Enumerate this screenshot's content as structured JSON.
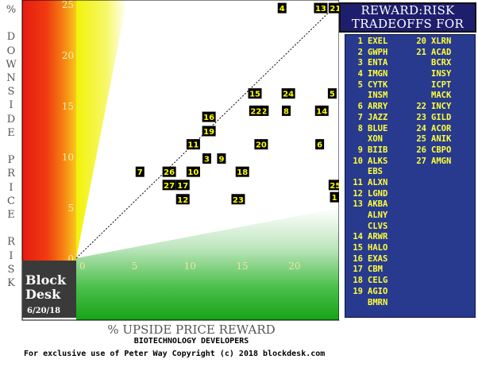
{
  "chart_data": {
    "type": "scatter",
    "xlabel": "% UPSIDE PRICE REWARD",
    "ylabel": "% DOWNSIDE PRICE RISK",
    "xlim": [
      0,
      25
    ],
    "ylim": [
      0,
      25
    ],
    "x_ticks": [
      "0",
      "5",
      "10",
      "15",
      "20",
      "25"
    ],
    "y_ticks": [
      "0",
      "5",
      "10",
      "15",
      "20",
      "25"
    ],
    "grid": false,
    "points": [
      {
        "label": "1",
        "x": 24.7,
        "y": 6.0
      },
      {
        "label": "2",
        "x": 18.0,
        "y": 14.5
      },
      {
        "label": "3",
        "x": 12.5,
        "y": 9.8
      },
      {
        "label": "4",
        "x": 19.7,
        "y": 24.6
      },
      {
        "label": "5",
        "x": 24.5,
        "y": 16.2
      },
      {
        "label": "6",
        "x": 23.3,
        "y": 11.2
      },
      {
        "label": "7",
        "x": 6.1,
        "y": 8.5
      },
      {
        "label": "8",
        "x": 20.1,
        "y": 14.5
      },
      {
        "label": "9",
        "x": 13.9,
        "y": 9.8
      },
      {
        "label": "10",
        "x": 11.2,
        "y": 8.5
      },
      {
        "label": "11",
        "x": 11.2,
        "y": 11.2
      },
      {
        "label": "12",
        "x": 10.2,
        "y": 5.8
      },
      {
        "label": "13",
        "x": 23.4,
        "y": 24.6
      },
      {
        "label": "14",
        "x": 23.5,
        "y": 14.5
      },
      {
        "label": "15",
        "x": 17.1,
        "y": 16.2
      },
      {
        "label": "16",
        "x": 12.7,
        "y": 13.9
      },
      {
        "label": "17",
        "x": 10.2,
        "y": 7.2
      },
      {
        "label": "18",
        "x": 15.9,
        "y": 8.5
      },
      {
        "label": "19",
        "x": 12.7,
        "y": 12.5
      },
      {
        "label": "20",
        "x": 17.7,
        "y": 11.2
      },
      {
        "label": "21",
        "x": 24.8,
        "y": 24.6
      },
      {
        "label": "22",
        "x": 17.2,
        "y": 14.5
      },
      {
        "label": "23",
        "x": 15.5,
        "y": 5.8
      },
      {
        "label": "24",
        "x": 20.3,
        "y": 16.2
      },
      {
        "label": "25",
        "x": 24.8,
        "y": 7.2
      },
      {
        "label": "26",
        "x": 8.9,
        "y": 8.5
      },
      {
        "label": "27",
        "x": 8.9,
        "y": 7.2
      }
    ]
  },
  "legend": {
    "title_line1": "REWARD:RISK",
    "title_line2": "TRADEOFFS FOR",
    "left_column": [
      {
        "num": "1",
        "ticker": "EXEL"
      },
      {
        "num": "2",
        "ticker": "GWPH"
      },
      {
        "num": "3",
        "ticker": "ENTA"
      },
      {
        "num": "4",
        "ticker": "IMGN"
      },
      {
        "num": "5",
        "ticker": "CYTK"
      },
      {
        "num": "",
        "ticker": "INSM"
      },
      {
        "num": "6",
        "ticker": "ARRY"
      },
      {
        "num": "7",
        "ticker": "JAZZ"
      },
      {
        "num": "8",
        "ticker": "BLUE"
      },
      {
        "num": "",
        "ticker": "XON"
      },
      {
        "num": "9",
        "ticker": "BIIB"
      },
      {
        "num": "10",
        "ticker": "ALKS"
      },
      {
        "num": "",
        "ticker": "EBS"
      },
      {
        "num": "11",
        "ticker": "ALXN"
      },
      {
        "num": "12",
        "ticker": "LGND"
      },
      {
        "num": "13",
        "ticker": "AKBA"
      },
      {
        "num": "",
        "ticker": "ALNY"
      },
      {
        "num": "",
        "ticker": "CLVS"
      },
      {
        "num": "14",
        "ticker": "ARWR"
      },
      {
        "num": "15",
        "ticker": "HALO"
      },
      {
        "num": "16",
        "ticker": "EXAS"
      },
      {
        "num": "17",
        "ticker": "CBM"
      },
      {
        "num": "18",
        "ticker": "CELG"
      },
      {
        "num": "19",
        "ticker": "AGIO"
      },
      {
        "num": "",
        "ticker": "BMRN"
      }
    ],
    "right_column": [
      {
        "num": "20",
        "ticker": "XLRN"
      },
      {
        "num": "21",
        "ticker": "ACAD"
      },
      {
        "num": "",
        "ticker": "BCRX"
      },
      {
        "num": "",
        "ticker": "INSY"
      },
      {
        "num": "",
        "ticker": "ICPT"
      },
      {
        "num": "",
        "ticker": "MACK"
      },
      {
        "num": "22",
        "ticker": "INCY"
      },
      {
        "num": "23",
        "ticker": "GILD"
      },
      {
        "num": "24",
        "ticker": "ACOR"
      },
      {
        "num": "25",
        "ticker": "ANIK"
      },
      {
        "num": "26",
        "ticker": "CBPO"
      },
      {
        "num": "27",
        "ticker": "AMGN"
      }
    ]
  },
  "brand": {
    "line1": "Block",
    "line2": "Desk",
    "date": "6/20/18"
  },
  "footer": {
    "industry": "BIOTECHNOLOGY DEVELOPERS",
    "copyright": "For exclusive use of Peter Way   Copyright (c) 2018 blockdesk.com"
  },
  "colors": {
    "point_bg": "#000000",
    "point_text": "#ffff00",
    "legend_bg": "#283a8e",
    "legend_text": "#ffff3a"
  }
}
